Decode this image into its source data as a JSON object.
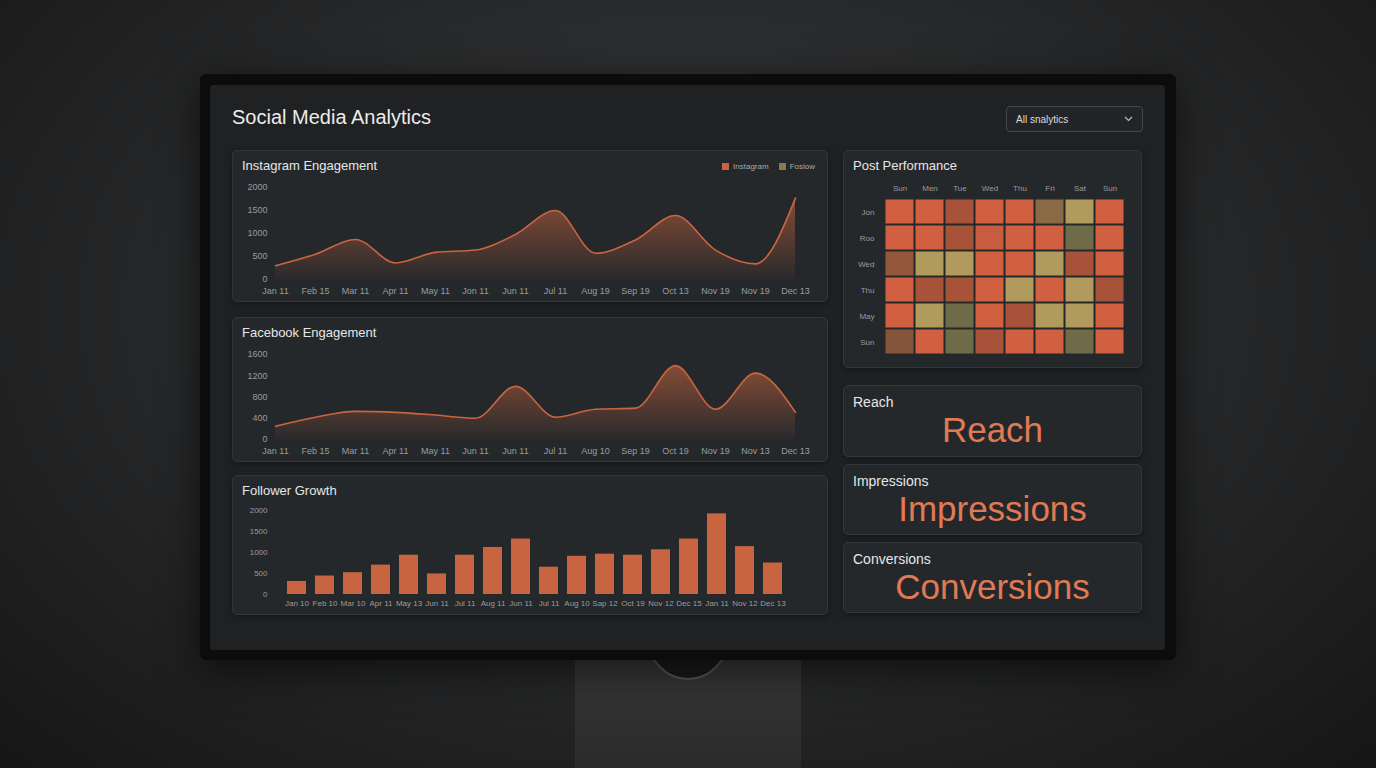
{
  "header": {
    "title": "Social Media Analytics",
    "dropdown": "All snalytics"
  },
  "chart_data": [
    {
      "type": "line",
      "title": "Instagram Engagement",
      "categories": [
        "Jan 11",
        "Feb 15",
        "Mar 11",
        "Apr 11",
        "May 11",
        "Jon 11",
        "Jun 11",
        "Jul 11",
        "Aug 19",
        "Sep 19",
        "Oct 13",
        "Nov 19",
        "Nov 19",
        "Dec 13"
      ],
      "series": [
        {
          "name": "Instagram",
          "color": "#c8643f",
          "values": [
            300,
            550,
            870,
            360,
            590,
            640,
            980,
            1500,
            570,
            860,
            1390,
            640,
            340,
            1770
          ]
        },
        {
          "name": "Fosiow",
          "color": "#8c7a4f",
          "values": [
            null,
            null,
            null,
            null,
            null,
            null,
            null,
            null,
            null,
            null,
            null,
            null,
            null,
            null
          ]
        }
      ],
      "ylim": [
        0,
        2000
      ],
      "yticks": [
        0,
        500,
        1000,
        1500,
        2000
      ],
      "grid": false,
      "legend": "top-right"
    },
    {
      "type": "line",
      "title": "Facebook Engagement",
      "categories": [
        "Jan 11",
        "Feb 15",
        "Mar 11",
        "Apr 11",
        "May 11",
        "Jun 11",
        "Jun 11",
        "Jul 11",
        "Aug 10",
        "Sep 19",
        "Oct 19",
        "Nov 19",
        "Nov 13",
        "Dec 13"
      ],
      "values": [
        250,
        420,
        530,
        510,
        460,
        400,
        1000,
        420,
        570,
        590,
        1390,
        570,
        1250,
        510
      ],
      "color": "#c8643f",
      "ylim": [
        0,
        1600
      ],
      "yticks": [
        0,
        400,
        800,
        1200,
        1600
      ],
      "grid": false
    },
    {
      "type": "bar",
      "title": "Follower Growth",
      "categories": [
        "Jan 10",
        "Feb 10",
        "Mar 10",
        "Apr 11",
        "May 13",
        "Jun 11",
        "Jul 11",
        "Aug 11",
        "Jun 11",
        "Jul 11",
        "Aug 10",
        "Sap 12",
        "Oct 19",
        "Nov 12",
        "Dec 15",
        "Jan 11",
        "Nov 12",
        "Dec 13"
      ],
      "values": [
        310,
        440,
        520,
        700,
        935,
        490,
        935,
        1120,
        1320,
        650,
        910,
        960,
        935,
        1065,
        1320,
        1920,
        1140,
        750
      ],
      "color": "#c8643f",
      "ylim": [
        0,
        2000
      ],
      "yticks": [
        0,
        500,
        1000,
        1500,
        2000
      ],
      "grid": false
    },
    {
      "type": "heatmap",
      "title": "Post Performance",
      "x": [
        "Sun",
        "Men",
        "Tue",
        "Wed",
        "Thu",
        "Fri",
        "Sat",
        "Sun"
      ],
      "y": [
        "Jon",
        "Roo",
        "Wed",
        "Thu",
        "May",
        "Sun"
      ],
      "colors": [
        [
          "#d0603f",
          "#d0603f",
          "#a8523a",
          "#d0603f",
          "#d0603f",
          "#8a6a45",
          "#b09a5c",
          "#d0603f"
        ],
        [
          "#d0603f",
          "#d0603f",
          "#a8523a",
          "#c75d3e",
          "#d0603f",
          "#d0603f",
          "#6f6a48",
          "#d0603f"
        ],
        [
          "#95573b",
          "#b09a5c",
          "#b09a5c",
          "#d0603f",
          "#d0603f",
          "#b09a5c",
          "#a8523a",
          "#d0603f"
        ],
        [
          "#d0603f",
          "#a8523a",
          "#a8523a",
          "#d0603f",
          "#b09a5c",
          "#d0603f",
          "#b09a5c",
          "#a8523a"
        ],
        [
          "#d0603f",
          "#b09a5c",
          "#6f6a48",
          "#d0603f",
          "#a8523a",
          "#b09a5c",
          "#b09a5c",
          "#d0603f"
        ],
        [
          "#85553b",
          "#d0603f",
          "#6f6a48",
          "#a8523a",
          "#d0603f",
          "#d0603f",
          "#6f6a48",
          "#d0603f"
        ]
      ]
    }
  ],
  "cards": [
    {
      "label": "Reach",
      "value": "Reach"
    },
    {
      "label": "Impressions",
      "value": "Impressions"
    },
    {
      "label": "Conversions",
      "value": "Conversions"
    }
  ]
}
